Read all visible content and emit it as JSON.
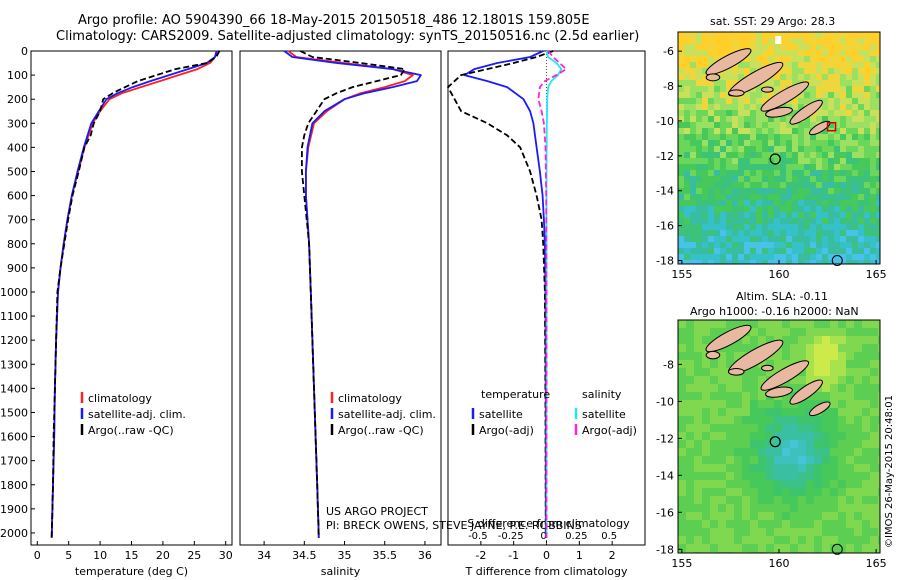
{
  "header": {
    "title_line1": "Argo profile: AO 5904390_66 18-May-2015 20150518_486 12.1801S 159.805E",
    "title_line2": "Climatology: CARS2009. Satellite-adjusted climatology: synTS_20150516.nc (2.5d earlier)"
  },
  "colors": {
    "climatology": "#ff2020",
    "satellite": "#1a1aff",
    "argo": "#000000",
    "sat_salinity": "#22e8f0",
    "argo_salinity": "#ff22e0"
  },
  "chart_data": [
    {
      "type": "line",
      "panel": "temperature",
      "xlabel": "temperature (deg C)",
      "ylabel": "",
      "xlim": [
        -1,
        31
      ],
      "ylim": [
        2050,
        0
      ],
      "xticks": [
        "0",
        "5",
        "10",
        "15",
        "20",
        "25",
        "30"
      ],
      "yticks": [
        "0",
        "100",
        "200",
        "300",
        "400",
        "500",
        "600",
        "700",
        "800",
        "900",
        "1000",
        "1100",
        "1200",
        "1300",
        "1400",
        "1500",
        "1600",
        "1700",
        "1800",
        "1900",
        "2000"
      ],
      "legend": [
        "climatology",
        "satellite-adj. clim.",
        "Argo(..raw -QC)"
      ],
      "legend_position": "lower-center",
      "series": [
        {
          "name": "climatology",
          "x": [
            28.5,
            28.3,
            27.5,
            25.5,
            22.5,
            19.5,
            16.5,
            13.5,
            11.5,
            10.0,
            8.8,
            7.5,
            6.5,
            5.5,
            4.8,
            4.2,
            3.7,
            3.3,
            3.0,
            2.8,
            2.7,
            2.6,
            2.5,
            2.4,
            2.3
          ],
          "y": [
            0,
            25,
            50,
            75,
            100,
            125,
            150,
            175,
            200,
            250,
            300,
            400,
            500,
            600,
            700,
            800,
            900,
            1000,
            1200,
            1400,
            1600,
            1700,
            1800,
            1900,
            2020
          ]
        },
        {
          "name": "satellite-adj. clim.",
          "x": [
            28.6,
            28.3,
            27.0,
            24.0,
            21.0,
            18.0,
            15.2,
            12.8,
            11.0,
            9.8,
            8.6,
            7.4,
            6.4,
            5.5,
            4.8,
            4.2,
            3.7,
            3.3,
            3.0,
            2.8,
            2.7,
            2.6,
            2.5,
            2.4,
            2.3
          ],
          "y": [
            0,
            25,
            50,
            75,
            100,
            125,
            150,
            175,
            200,
            250,
            300,
            400,
            500,
            600,
            700,
            800,
            900,
            1000,
            1200,
            1400,
            1600,
            1700,
            1800,
            1900,
            2020
          ]
        },
        {
          "name": "Argo(..raw -QC)",
          "x": [
            29.0,
            28.5,
            27.0,
            22.0,
            19.0,
            16.0,
            14.0,
            12.0,
            10.5,
            10.0,
            9.0,
            8.5,
            7.5,
            6.6,
            5.6,
            4.9,
            4.3,
            3.7,
            3.2,
            3.0,
            2.8,
            2.6,
            2.5,
            2.4,
            2.3
          ],
          "y": [
            0,
            25,
            50,
            75,
            100,
            125,
            150,
            175,
            200,
            250,
            300,
            350,
            400,
            500,
            600,
            700,
            800,
            900,
            1000,
            1200,
            1400,
            1600,
            1800,
            1900,
            2020
          ]
        }
      ]
    },
    {
      "type": "line",
      "panel": "salinity",
      "xlabel": "salinity",
      "xlim": [
        33.7,
        36.2
      ],
      "ylim": [
        2050,
        0
      ],
      "xticks": [
        "34",
        "34.5",
        "35",
        "35.5",
        "36"
      ],
      "legend": [
        "climatology",
        "satellite-adj. clim.",
        "Argo(..raw -QC)"
      ],
      "legend_position": "lower-center",
      "annotations": [
        "US ARGO PROJECT",
        "PI: BRECK OWENS, STEVE JAYNE, P.E. ROBBINS"
      ],
      "series": [
        {
          "name": "climatology",
          "x": [
            34.3,
            34.4,
            35.0,
            35.6,
            35.85,
            35.75,
            35.5,
            35.2,
            35.0,
            34.78,
            34.62,
            34.55,
            34.52,
            34.52,
            34.54,
            34.56,
            34.58,
            34.6,
            34.62,
            34.64,
            34.66,
            34.68
          ],
          "y": [
            0,
            25,
            50,
            75,
            100,
            125,
            150,
            175,
            200,
            250,
            300,
            400,
            500,
            600,
            700,
            800,
            1000,
            1200,
            1400,
            1600,
            1800,
            2020
          ]
        },
        {
          "name": "satellite-adj. clim.",
          "x": [
            34.25,
            34.35,
            34.9,
            35.6,
            35.95,
            35.9,
            35.6,
            35.25,
            35.0,
            34.75,
            34.6,
            34.54,
            34.52,
            34.52,
            34.54,
            34.56,
            34.58,
            34.6,
            34.62,
            34.64,
            34.66,
            34.68
          ],
          "y": [
            0,
            25,
            50,
            75,
            100,
            125,
            150,
            175,
            200,
            250,
            300,
            400,
            500,
            600,
            700,
            800,
            1000,
            1200,
            1400,
            1600,
            1800,
            2020
          ]
        },
        {
          "name": "Argo(..raw -QC)",
          "x": [
            34.45,
            34.6,
            35.2,
            35.75,
            35.7,
            35.4,
            35.1,
            34.9,
            34.75,
            34.65,
            34.55,
            34.5,
            34.47,
            34.47,
            34.5,
            34.53,
            34.56,
            34.58,
            34.6,
            34.62,
            34.64,
            34.66,
            34.68
          ],
          "y": [
            0,
            25,
            50,
            75,
            100,
            125,
            150,
            175,
            200,
            250,
            300,
            350,
            400,
            500,
            600,
            700,
            800,
            1000,
            1200,
            1400,
            1600,
            1800,
            2020
          ]
        }
      ]
    },
    {
      "type": "line",
      "panel": "difference",
      "xlabel": "T difference from climatology",
      "top_xlabel": "S difference from climatology",
      "xlim": [
        -3,
        3
      ],
      "ylim": [
        2050,
        0
      ],
      "xticks": [
        "-2",
        "-1",
        "0",
        "1",
        "2"
      ],
      "top_xticks": [
        "-0.5",
        "-0.25",
        "0",
        "0.25",
        "0.5"
      ],
      "legend_titles": [
        "temperature",
        "salinity"
      ],
      "legend": [
        "satellite",
        "Argo(-adj)",
        "satellite",
        "Argo(-adj)"
      ],
      "series": [
        {
          "name": "satellite",
          "variable": "temperature",
          "x": [
            -0.1,
            -0.5,
            -1.5,
            -2.2,
            -2.5,
            -1.8,
            -1.2,
            -0.7,
            -0.5,
            -0.4,
            -0.3,
            -0.2,
            -0.12,
            -0.08,
            -0.05,
            -0.03,
            -0.02,
            -0.02
          ],
          "y": [
            0,
            25,
            50,
            75,
            100,
            125,
            150,
            200,
            250,
            300,
            400,
            500,
            600,
            700,
            800,
            1000,
            1500,
            2020
          ]
        },
        {
          "name": "Argo(-adj)",
          "variable": "temperature",
          "x": [
            0.2,
            -0.3,
            -1.0,
            -2.6,
            -3.0,
            -2.8,
            -2.6,
            -1.8,
            -1.2,
            -0.8,
            -0.5,
            -0.3,
            -0.15,
            -0.1,
            -0.05,
            -0.03,
            -0.02
          ],
          "y": [
            0,
            25,
            50,
            100,
            150,
            200,
            250,
            300,
            350,
            400,
            500,
            600,
            700,
            800,
            1000,
            1500,
            2020
          ]
        },
        {
          "name": "satellite",
          "variable": "salinity",
          "x": [
            0.0,
            0.05,
            0.3,
            0.45,
            0.35,
            0.15,
            0.05,
            0.02,
            0.01,
            0.0,
            0.0,
            0.0
          ],
          "y": [
            0,
            25,
            50,
            75,
            100,
            125,
            150,
            200,
            300,
            500,
            1000,
            2020
          ]
        },
        {
          "name": "Argo(-adj)",
          "variable": "salinity",
          "x": [
            0.05,
            0.2,
            0.4,
            0.6,
            0.3,
            -0.05,
            -0.2,
            -0.25,
            -0.15,
            -0.08,
            -0.03,
            -0.01,
            0.0,
            0.0
          ],
          "y": [
            0,
            25,
            50,
            75,
            100,
            125,
            150,
            200,
            250,
            300,
            400,
            600,
            1000,
            2020
          ]
        }
      ]
    },
    {
      "type": "heatmap",
      "panel": "sst_map",
      "title": "sat. SST: 29  Argo: 28.3",
      "xlim": [
        154.8,
        165.2
      ],
      "ylim": [
        -18.2,
        -4.9
      ],
      "xticks": [
        "155",
        "160",
        "165"
      ],
      "yticks": [
        "-6",
        "-8",
        "-10",
        "-12",
        "-14",
        "-16",
        "-18"
      ],
      "argo_position": {
        "lon": 159.805,
        "lat": -12.1801
      },
      "sst_argo": 28.3,
      "sst_sat": 29
    },
    {
      "type": "heatmap",
      "panel": "sla_map",
      "title": "Altim. SLA: -0.11",
      "subtitle": "Argo h1000: -0.16 h2000: NaN",
      "xlim": [
        154.8,
        165.2
      ],
      "ylim": [
        -18.2,
        -5.6
      ],
      "xticks": [
        "155",
        "160",
        "165"
      ],
      "yticks": [
        "-8",
        "-10",
        "-12",
        "-14",
        "-16",
        "-18"
      ],
      "argo_position": {
        "lon": 159.805,
        "lat": -12.1801
      }
    }
  ],
  "watermark": "©IMOS 26-May-2015 20:48:01"
}
